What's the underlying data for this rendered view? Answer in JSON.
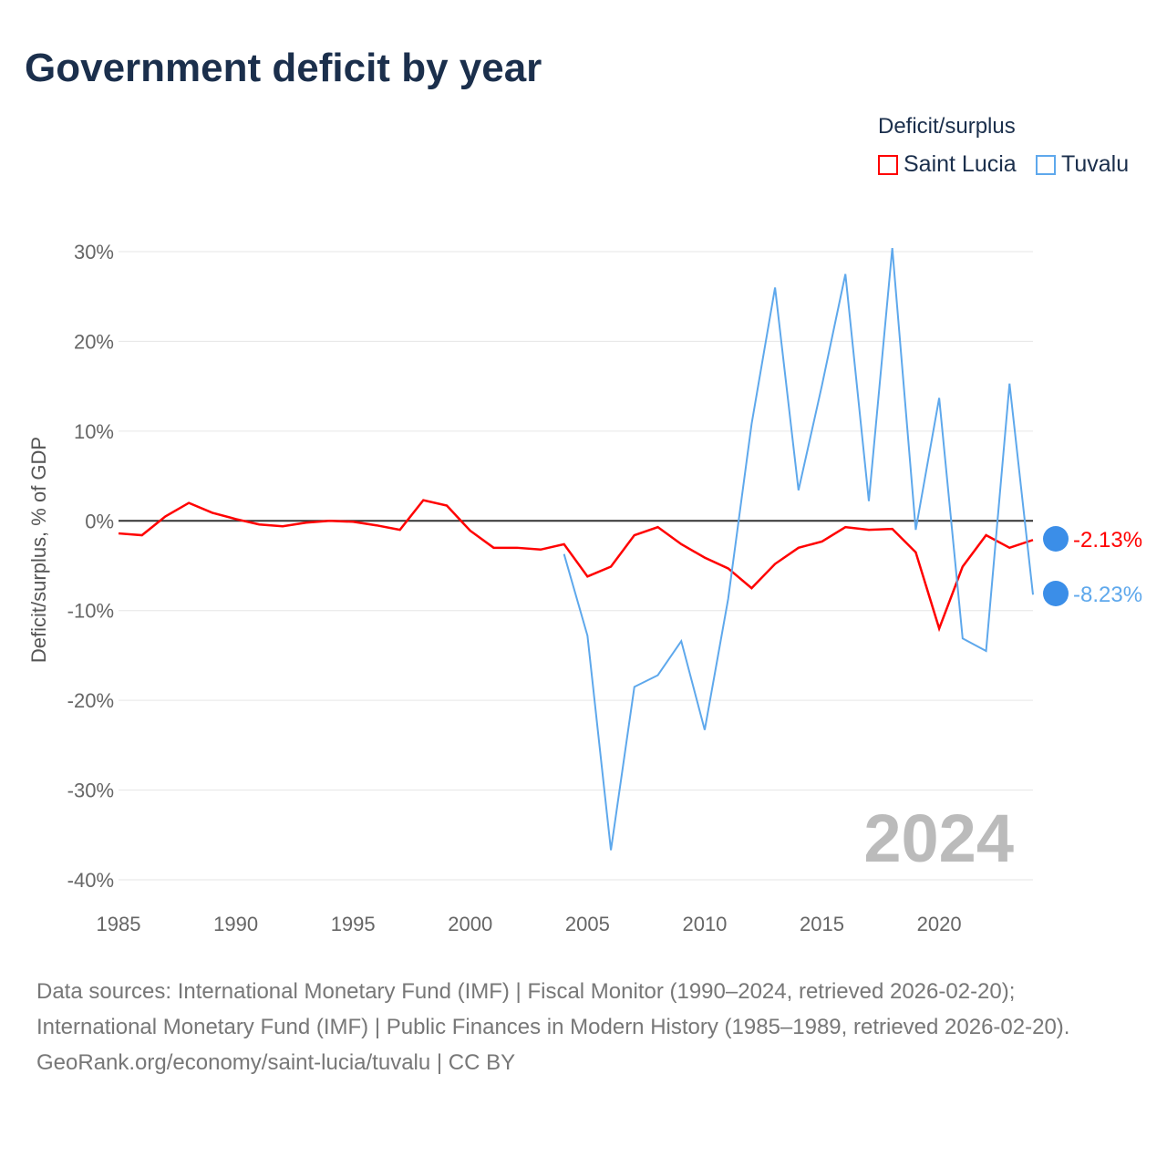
{
  "title": "Government deficit by year",
  "legend": {
    "title": "Deficit/surplus",
    "items": [
      {
        "name": "Saint Lucia",
        "color": "#ff0000"
      },
      {
        "name": "Tuvalu",
        "color": "#5ea8ec"
      }
    ]
  },
  "footer": {
    "sources": "Data sources: International Monetary Fund (IMF) | Fiscal Monitor (1990–2024, retrieved 2026-02-20); International Monetary Fund (IMF) | Public Finances in Modern History (1985–1989, retrieved 2026-02-20).",
    "link": "GeoRank.org/economy/saint-lucia/tuvalu | CC BY"
  },
  "chart_data": {
    "type": "line",
    "title": "Government deficit by year",
    "ylabel": "Deficit/surplus, % of GDP",
    "xlim": [
      1985,
      2024
    ],
    "ylim": [
      -40,
      30
    ],
    "xticks": [
      1985,
      1990,
      1995,
      2000,
      2005,
      2010,
      2015,
      2020
    ],
    "yticks": [
      30,
      20,
      10,
      0,
      -10,
      -20,
      -30,
      -40
    ],
    "ytick_labels": [
      "30%",
      "20%",
      "10%",
      "0%",
      "-10%",
      "-20%",
      "-30%",
      "-40%"
    ],
    "year_label": "2024",
    "series": [
      {
        "name": "Saint Lucia",
        "color": "#ff0000",
        "end_label": "-2.13%",
        "x": [
          1985,
          1986,
          1987,
          1988,
          1989,
          1990,
          1991,
          1992,
          1993,
          1994,
          1995,
          1996,
          1997,
          1998,
          1999,
          2000,
          2001,
          2002,
          2003,
          2004,
          2005,
          2006,
          2007,
          2008,
          2009,
          2010,
          2011,
          2012,
          2013,
          2014,
          2015,
          2016,
          2017,
          2018,
          2019,
          2020,
          2021,
          2022,
          2023,
          2024
        ],
        "values": [
          -1.4,
          -1.6,
          0.5,
          2.0,
          0.9,
          0.2,
          -0.4,
          -0.6,
          -0.2,
          0,
          -0.1,
          -0.5,
          -1.0,
          2.3,
          1.7,
          -1.1,
          -3.0,
          -3.0,
          -3.2,
          -2.6,
          -6.2,
          -5.1,
          -1.6,
          -0.7,
          -2.6,
          -4.1,
          -5.3,
          -7.5,
          -4.8,
          -3.0,
          -2.3,
          -0.7,
          -1.0,
          -0.9,
          -3.5,
          -12.0,
          -5.1,
          -1.6,
          -3.0,
          -2.13
        ]
      },
      {
        "name": "Tuvalu",
        "color": "#5ea8ec",
        "end_label": "-8.23%",
        "x": [
          2004,
          2005,
          2006,
          2007,
          2008,
          2009,
          2010,
          2011,
          2012,
          2013,
          2014,
          2015,
          2016,
          2017,
          2018,
          2019,
          2020,
          2021,
          2022,
          2023,
          2024
        ],
        "values": [
          -3.7,
          -12.8,
          -36.7,
          -18.5,
          -17.2,
          -13.4,
          -23.3,
          -8.7,
          10.8,
          26.0,
          3.4,
          15.1,
          27.5,
          2.2,
          30.4,
          -1.0,
          13.7,
          -13.1,
          -14.5,
          15.3,
          -8.23
        ]
      }
    ]
  }
}
